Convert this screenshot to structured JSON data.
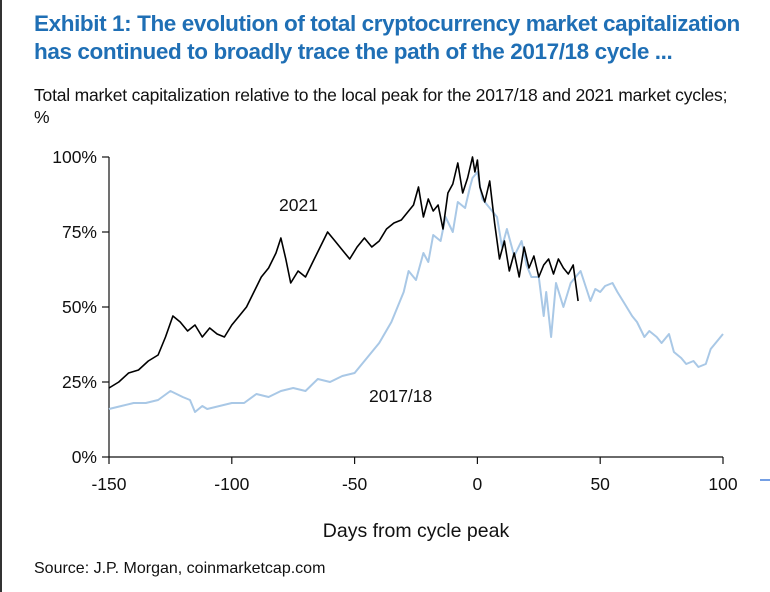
{
  "title": "Exhibit 1: The evolution of total cryptocurrency market capitalization has continued to broadly trace the path of the 2017/18 cycle ...",
  "subtitle": "Total market capitalization relative to the local peak for the 2017/18 and 2021 market cycles; %",
  "source": "Source: J.P.  Morgan, coinmarketcap.com",
  "colors": {
    "title": "#1f6fb5",
    "series_2021": "#000000",
    "series_2017_18": "#a9c8e6"
  },
  "chart_data": {
    "type": "line",
    "xlabel": "Days from cycle peak",
    "ylabel": "",
    "xlim": [
      -150,
      100
    ],
    "ylim": [
      0,
      100
    ],
    "x_ticks": [
      -150,
      -100,
      -50,
      0,
      50,
      100
    ],
    "x_tick_labels": [
      "-150",
      "-100",
      "-50",
      "0",
      "50",
      "100"
    ],
    "y_ticks": [
      0,
      25,
      50,
      75,
      100
    ],
    "y_tick_labels": [
      "0%",
      "25%",
      "50%",
      "75%",
      "100%"
    ],
    "grid": false,
    "annotations": [
      {
        "text": "2021",
        "series": "2021"
      },
      {
        "text": "2017/18",
        "series": "2017/18"
      }
    ],
    "series": [
      {
        "name": "2021",
        "color": "#000000",
        "x": [
          -150,
          -146,
          -142,
          -138,
          -134,
          -130,
          -127,
          -124,
          -121,
          -118,
          -115,
          -112,
          -109,
          -106,
          -103,
          -100,
          -97,
          -94,
          -91,
          -88,
          -85,
          -82,
          -80,
          -78,
          -76,
          -73,
          -70,
          -67,
          -64,
          -61,
          -58,
          -55,
          -52,
          -49,
          -46,
          -43,
          -40,
          -37,
          -34,
          -31,
          -28,
          -26,
          -24,
          -22,
          -20,
          -18,
          -16,
          -14,
          -12,
          -10,
          -8,
          -6,
          -4,
          -2,
          -1,
          0,
          1,
          3,
          5,
          7,
          9,
          11,
          13,
          15,
          17,
          19,
          21,
          23,
          25,
          27,
          29,
          31,
          33,
          35,
          37,
          39,
          41
        ],
        "values": [
          23,
          25,
          28,
          29,
          32,
          34,
          40,
          47,
          45,
          42,
          44,
          40,
          43,
          41,
          40,
          44,
          47,
          50,
          55,
          60,
          63,
          68,
          73,
          66,
          58,
          62,
          60,
          65,
          70,
          75,
          72,
          69,
          66,
          70,
          73,
          70,
          72,
          76,
          78,
          79,
          82,
          84,
          90,
          80,
          86,
          82,
          84,
          76,
          88,
          91,
          98,
          88,
          93,
          100,
          95,
          99,
          90,
          85,
          92,
          78,
          66,
          72,
          62,
          68,
          60,
          70,
          63,
          67,
          60,
          64,
          66,
          61,
          66,
          63,
          61,
          64,
          52
        ]
      },
      {
        "name": "2017/18",
        "color": "#a9c8e6",
        "x": [
          -150,
          -145,
          -140,
          -135,
          -130,
          -125,
          -120,
          -117,
          -115,
          -112,
          -110,
          -105,
          -100,
          -95,
          -90,
          -85,
          -80,
          -75,
          -70,
          -65,
          -60,
          -55,
          -50,
          -45,
          -40,
          -35,
          -30,
          -28,
          -25,
          -22,
          -20,
          -18,
          -15,
          -13,
          -10,
          -8,
          -5,
          -3,
          -2,
          0,
          2,
          5,
          8,
          10,
          12,
          15,
          18,
          20,
          22,
          25,
          27,
          28,
          30,
          32,
          35,
          38,
          40,
          42,
          44,
          46,
          48,
          50,
          52,
          55,
          57,
          60,
          63,
          65,
          68,
          70,
          73,
          75,
          78,
          80,
          83,
          85,
          88,
          90,
          93,
          95,
          98,
          100
        ],
        "values": [
          16,
          17,
          18,
          18,
          19,
          22,
          20,
          19,
          15,
          17,
          16,
          17,
          18,
          18,
          21,
          20,
          22,
          23,
          22,
          26,
          25,
          27,
          28,
          33,
          38,
          45,
          55,
          62,
          59,
          68,
          65,
          74,
          72,
          80,
          75,
          85,
          83,
          90,
          93,
          95,
          86,
          83,
          80,
          70,
          76,
          67,
          72,
          64,
          60,
          60,
          47,
          55,
          40,
          58,
          50,
          58,
          60,
          62,
          57,
          52,
          56,
          55,
          57,
          58,
          55,
          51,
          47,
          45,
          40,
          42,
          40,
          38,
          41,
          35,
          33,
          31,
          32,
          30,
          31,
          36,
          39,
          41
        ]
      }
    ]
  }
}
